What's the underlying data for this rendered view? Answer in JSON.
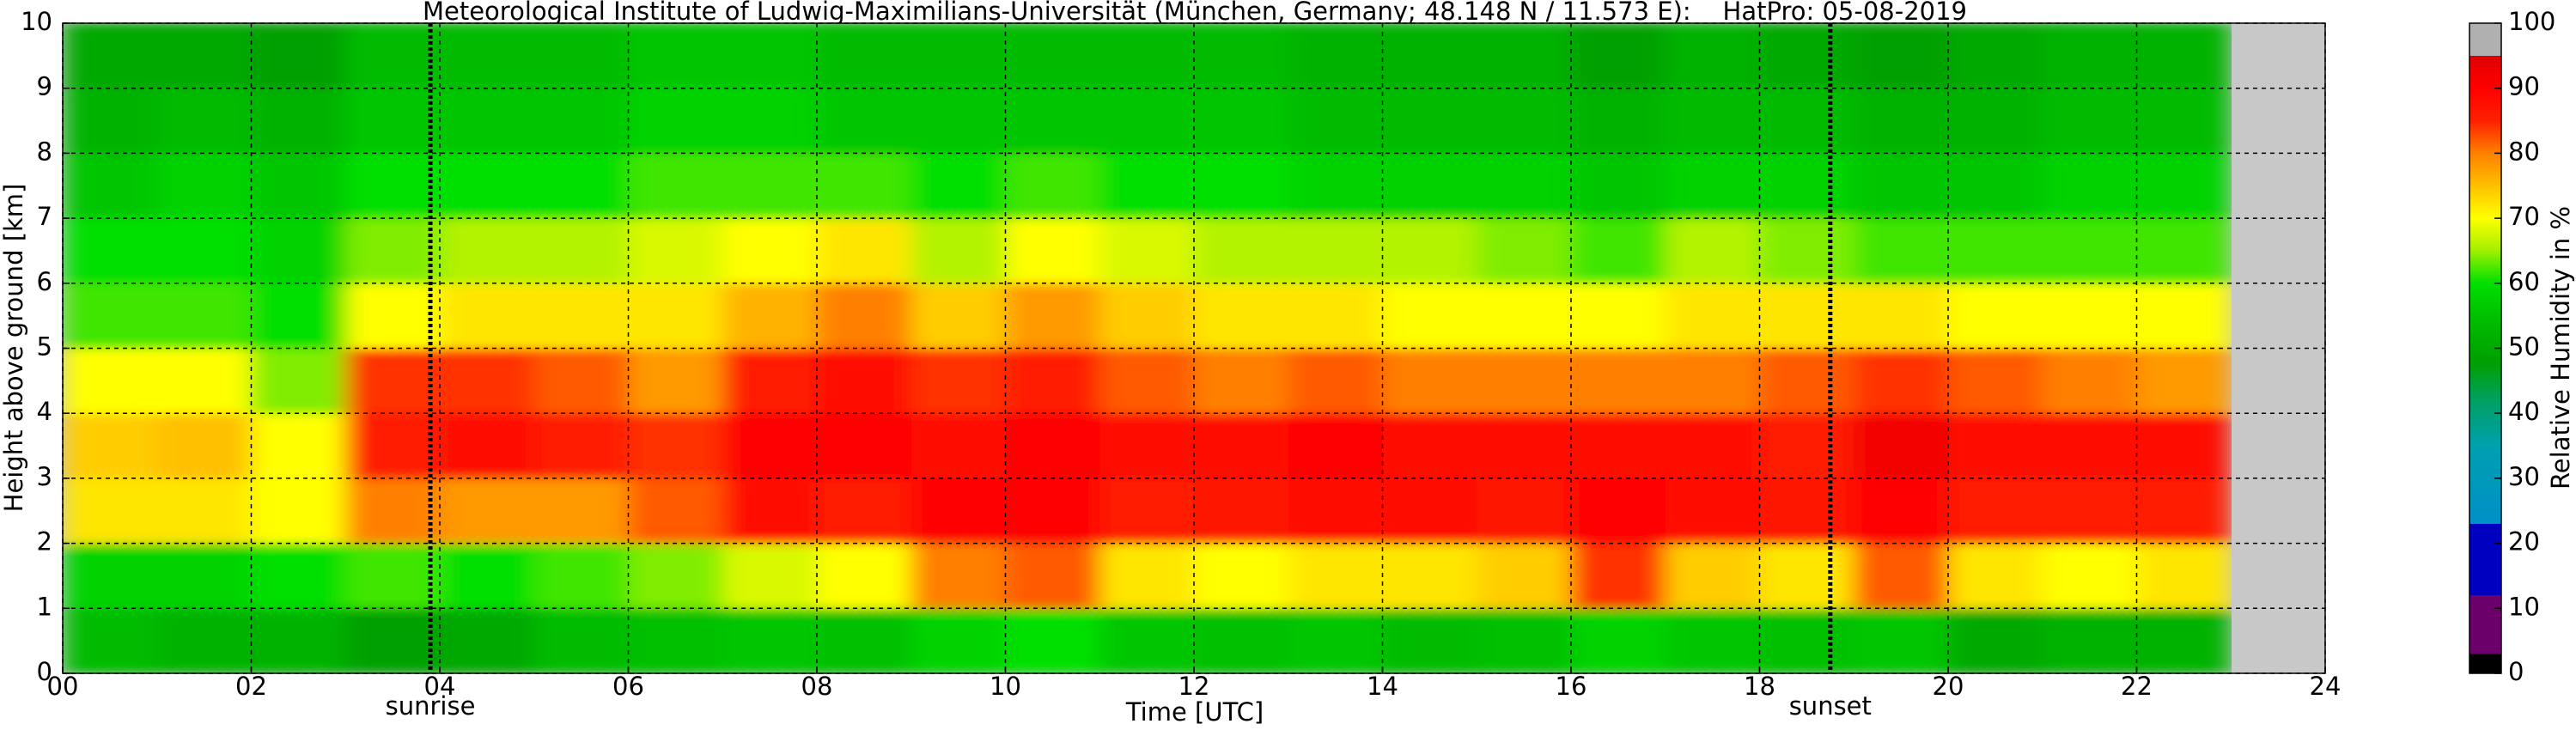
{
  "chart_data": {
    "type": "heatmap",
    "title": "Meteorological Institute of Ludwig-Maximilians-Universität (München, Germany; 48.148 N / 11.573 E):    HatPro: 05-08-2019",
    "xlabel": "Time [UTC]",
    "ylabel": "Height above ground [km]",
    "colorbar_label": "Relative Humidity in %",
    "xlim": [
      0,
      24
    ],
    "ylim": [
      0,
      10
    ],
    "clim": [
      0,
      100
    ],
    "xticks": [
      {
        "value": 0,
        "label": "00"
      },
      {
        "value": 2,
        "label": "02"
      },
      {
        "value": 4,
        "label": "04"
      },
      {
        "value": 6,
        "label": "06"
      },
      {
        "value": 8,
        "label": "08"
      },
      {
        "value": 10,
        "label": "10"
      },
      {
        "value": 12,
        "label": "12"
      },
      {
        "value": 14,
        "label": "14"
      },
      {
        "value": 16,
        "label": "16"
      },
      {
        "value": 18,
        "label": "18"
      },
      {
        "value": 20,
        "label": "20"
      },
      {
        "value": 22,
        "label": "22"
      },
      {
        "value": 24,
        "label": "24"
      }
    ],
    "yticks": [
      0,
      1,
      2,
      3,
      4,
      5,
      6,
      7,
      8,
      9,
      10
    ],
    "cticks": [
      0,
      10,
      20,
      30,
      40,
      50,
      60,
      70,
      80,
      90,
      100
    ],
    "grid": true,
    "nodata_color": "#c8c8c8",
    "annotations": [
      {
        "label": "sunrise",
        "x": 3.9
      },
      {
        "label": "sunset",
        "x": 18.75
      }
    ],
    "xbins": [
      0,
      1,
      2,
      3,
      4,
      5,
      6,
      7,
      8,
      9,
      10,
      11,
      12,
      13,
      14,
      15,
      16,
      17,
      18,
      19,
      20,
      21,
      22,
      23
    ],
    "ybins": [
      0,
      1,
      2,
      3,
      4,
      5,
      6,
      7,
      8,
      9,
      10
    ],
    "z": [
      [
        54,
        52,
        52,
        48,
        50,
        54,
        55,
        56,
        55,
        58,
        60,
        56,
        55,
        56,
        54,
        55,
        58,
        56,
        55,
        56,
        50,
        52,
        52
      ],
      [
        58,
        58,
        60,
        62,
        60,
        62,
        64,
        68,
        70,
        80,
        82,
        72,
        70,
        72,
        72,
        74,
        84,
        74,
        72,
        82,
        72,
        70,
        72
      ],
      [
        72,
        72,
        70,
        80,
        78,
        78,
        82,
        88,
        86,
        90,
        90,
        86,
        87,
        88,
        88,
        87,
        90,
        88,
        87,
        90,
        86,
        86,
        86
      ],
      [
        74,
        75,
        70,
        86,
        88,
        86,
        84,
        90,
        90,
        88,
        90,
        88,
        88,
        90,
        88,
        88,
        88,
        88,
        86,
        92,
        88,
        88,
        88
      ],
      [
        70,
        70,
        64,
        84,
        84,
        82,
        78,
        86,
        88,
        84,
        86,
        82,
        80,
        82,
        80,
        80,
        80,
        80,
        82,
        84,
        82,
        80,
        78
      ],
      [
        62,
        62,
        60,
        70,
        72,
        72,
        72,
        76,
        80,
        74,
        78,
        74,
        72,
        72,
        70,
        70,
        70,
        72,
        72,
        72,
        70,
        70,
        70
      ],
      [
        60,
        60,
        58,
        64,
        66,
        66,
        68,
        70,
        72,
        66,
        70,
        68,
        66,
        66,
        66,
        64,
        62,
        66,
        64,
        62,
        62,
        62,
        62
      ],
      [
        56,
        58,
        56,
        60,
        60,
        60,
        62,
        62,
        62,
        60,
        62,
        60,
        60,
        58,
        58,
        58,
        56,
        58,
        58,
        56,
        56,
        58,
        58
      ],
      [
        52,
        54,
        52,
        56,
        56,
        56,
        58,
        58,
        56,
        56,
        56,
        56,
        56,
        54,
        54,
        54,
        52,
        54,
        54,
        52,
        52,
        54,
        54
      ],
      [
        50,
        50,
        48,
        54,
        54,
        54,
        56,
        56,
        54,
        54,
        54,
        54,
        54,
        52,
        52,
        52,
        48,
        52,
        50,
        48,
        50,
        52,
        52
      ]
    ],
    "colorscale": [
      [
        0,
        "#000000"
      ],
      [
        3,
        "#000000"
      ],
      [
        3,
        "#6b006b"
      ],
      [
        12,
        "#6b006b"
      ],
      [
        12,
        "#0000c0"
      ],
      [
        23,
        "#0000c0"
      ],
      [
        23,
        "#0090c8"
      ],
      [
        35,
        "#00a0b0"
      ],
      [
        42,
        "#00a060"
      ],
      [
        48,
        "#00a000"
      ],
      [
        55,
        "#00c000"
      ],
      [
        60,
        "#00e000"
      ],
      [
        65,
        "#a0f000"
      ],
      [
        70,
        "#ffff00"
      ],
      [
        75,
        "#ffc000"
      ],
      [
        80,
        "#ff8000"
      ],
      [
        85,
        "#ff2000"
      ],
      [
        90,
        "#ff0000"
      ],
      [
        95,
        "#e00000"
      ],
      [
        95,
        "#b0b0b0"
      ],
      [
        100,
        "#b0b0b0"
      ]
    ]
  }
}
